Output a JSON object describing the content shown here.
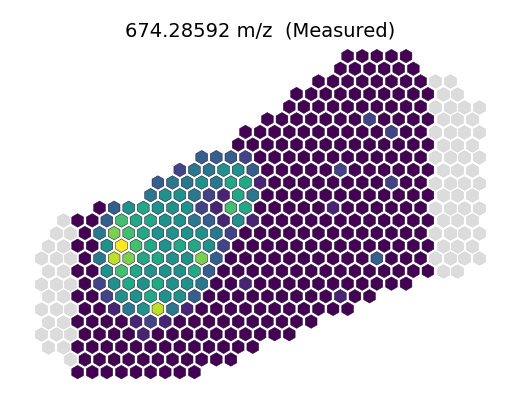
{
  "chart_data": {
    "type": "heatmap",
    "title": "674.28592 m/z  (Measured)",
    "color": "viridis",
    "tick_labels": false,
    "rows": [
      {
        "start": 21,
        "values": [
          0,
          0,
          0,
          0,
          0
        ]
      },
      {
        "start": 20,
        "values": [
          0,
          0,
          0,
          0,
          0,
          0
        ]
      },
      {
        "start": 19,
        "values": [
          0,
          0,
          0,
          0,
          0,
          0,
          0,
          0,
          null,
          null
        ]
      },
      {
        "start": 17,
        "values": [
          0,
          0,
          0,
          0,
          0,
          0,
          0,
          0,
          0,
          0,
          null,
          null
        ]
      },
      {
        "start": 17,
        "values": [
          0,
          0,
          0,
          0,
          0,
          0,
          0,
          0,
          0,
          0,
          null,
          null,
          null,
          null
        ]
      },
      {
        "start": 15,
        "values": [
          0,
          0,
          0,
          0,
          0,
          0,
          0,
          2,
          0,
          0,
          0,
          0,
          null,
          null,
          null
        ]
      },
      {
        "start": 14,
        "values": [
          0,
          0,
          0,
          0,
          0,
          0,
          0,
          0,
          0,
          0,
          2,
          0,
          0,
          null,
          null,
          null,
          null
        ]
      },
      {
        "start": 13,
        "values": [
          0,
          0,
          0,
          0,
          0,
          0,
          0,
          0,
          0,
          0,
          0,
          0,
          0,
          0,
          null,
          null,
          null
        ]
      },
      {
        "start": 11,
        "values": [
          3,
          3,
          3,
          2,
          0,
          0,
          0,
          0,
          0,
          0,
          0,
          0,
          0,
          0,
          0,
          0,
          null,
          null,
          null,
          null
        ]
      },
      {
        "start": 9,
        "values": [
          2,
          4,
          4,
          5,
          5,
          3,
          0,
          0,
          0,
          0,
          0,
          2,
          0,
          0,
          0,
          0,
          0,
          0,
          null,
          null,
          null
        ]
      },
      {
        "start": 8,
        "values": [
          3,
          4,
          4,
          5,
          4,
          6,
          6,
          1,
          0,
          0,
          0,
          0,
          0,
          0,
          0,
          0,
          2,
          0,
          0,
          null,
          null,
          null,
          null
        ]
      },
      {
        "start": 7,
        "values": [
          4,
          5,
          5,
          4,
          2,
          1,
          6,
          4,
          0,
          0,
          0,
          0,
          0,
          0,
          0,
          0,
          0,
          0,
          0,
          0,
          null,
          null,
          null
        ]
      },
      {
        "start": 4,
        "values": [
          0,
          3,
          5,
          6,
          5,
          5,
          5,
          2,
          1,
          7,
          6,
          0,
          0,
          0,
          0,
          0,
          1,
          0,
          0,
          0,
          0,
          0,
          0,
          null,
          null,
          null,
          null
        ]
      },
      {
        "start": 1,
        "values": [
          null,
          0,
          0,
          3,
          7,
          6,
          6,
          5,
          5,
          4,
          3,
          1,
          5,
          1,
          0,
          0,
          0,
          0,
          0,
          0,
          0,
          0,
          0,
          0,
          0,
          0,
          null,
          null,
          null
        ]
      },
      {
        "start": 1,
        "values": [
          null,
          null,
          0,
          4,
          8,
          7,
          6,
          5,
          5,
          5,
          5,
          4,
          2,
          0,
          0,
          0,
          0,
          0,
          0,
          0,
          0,
          0,
          0,
          0,
          0,
          0,
          null,
          null,
          null,
          null
        ]
      },
      {
        "start": 0,
        "values": [
          null,
          null,
          0,
          0,
          5,
          10,
          7,
          6,
          5,
          6,
          6,
          5,
          2,
          0,
          0,
          0,
          0,
          0,
          0,
          0,
          0,
          0,
          0,
          0,
          0,
          0,
          0,
          null,
          null,
          null
        ]
      },
      {
        "start": 0,
        "values": [
          null,
          null,
          null,
          0,
          4,
          9,
          8,
          6,
          6,
          5,
          5,
          8,
          3,
          0,
          0,
          0,
          0,
          0,
          0,
          0,
          0,
          0,
          0,
          3,
          0,
          0,
          0,
          null,
          null,
          null,
          null
        ]
      },
      {
        "start": 0,
        "values": [
          null,
          null,
          0,
          0,
          5,
          7,
          6,
          5,
          5,
          5,
          6,
          3,
          0,
          0,
          0,
          0,
          0,
          0,
          0,
          0,
          0,
          0,
          0,
          0,
          0,
          0,
          0,
          null,
          null
        ]
      },
      {
        "start": 0,
        "values": [
          null,
          null,
          null,
          0,
          2,
          5,
          6,
          5,
          6,
          5,
          5,
          4,
          0,
          0,
          1,
          0,
          0,
          0,
          0,
          0,
          0,
          0,
          0,
          0,
          0,
          0
        ]
      },
      {
        "start": 0,
        "values": [
          null,
          null,
          0,
          0,
          2,
          5,
          5,
          6,
          5,
          5,
          3,
          0,
          0,
          0,
          0,
          0,
          0,
          0,
          0,
          0,
          1,
          0,
          0
        ]
      },
      {
        "start": 0,
        "values": [
          null,
          null,
          null,
          0,
          0,
          1,
          4,
          5,
          9,
          4,
          1,
          0,
          0,
          0,
          0,
          0,
          0,
          0,
          0,
          0,
          0,
          0
        ]
      },
      {
        "start": 0,
        "values": [
          null,
          null,
          0,
          0,
          0,
          0,
          1,
          2,
          1,
          0,
          0,
          0,
          0,
          0,
          0,
          0,
          0,
          0,
          0
        ]
      },
      {
        "start": 0,
        "values": [
          null,
          null,
          null,
          0,
          0,
          0,
          0,
          1,
          0,
          0,
          0,
          0,
          0,
          0,
          0,
          0,
          0,
          0
        ]
      },
      {
        "start": 0,
        "values": [
          null,
          null,
          0,
          0,
          0,
          0,
          0,
          0,
          0,
          0,
          0,
          0,
          0,
          0,
          0
        ]
      },
      {
        "start": 2,
        "values": [
          null,
          0,
          0,
          0,
          0,
          0,
          0,
          0,
          0,
          0,
          0,
          0
        ]
      },
      {
        "start": 2,
        "values": [
          0,
          0,
          0,
          0,
          0,
          0,
          0,
          0,
          0
        ]
      }
    ]
  }
}
